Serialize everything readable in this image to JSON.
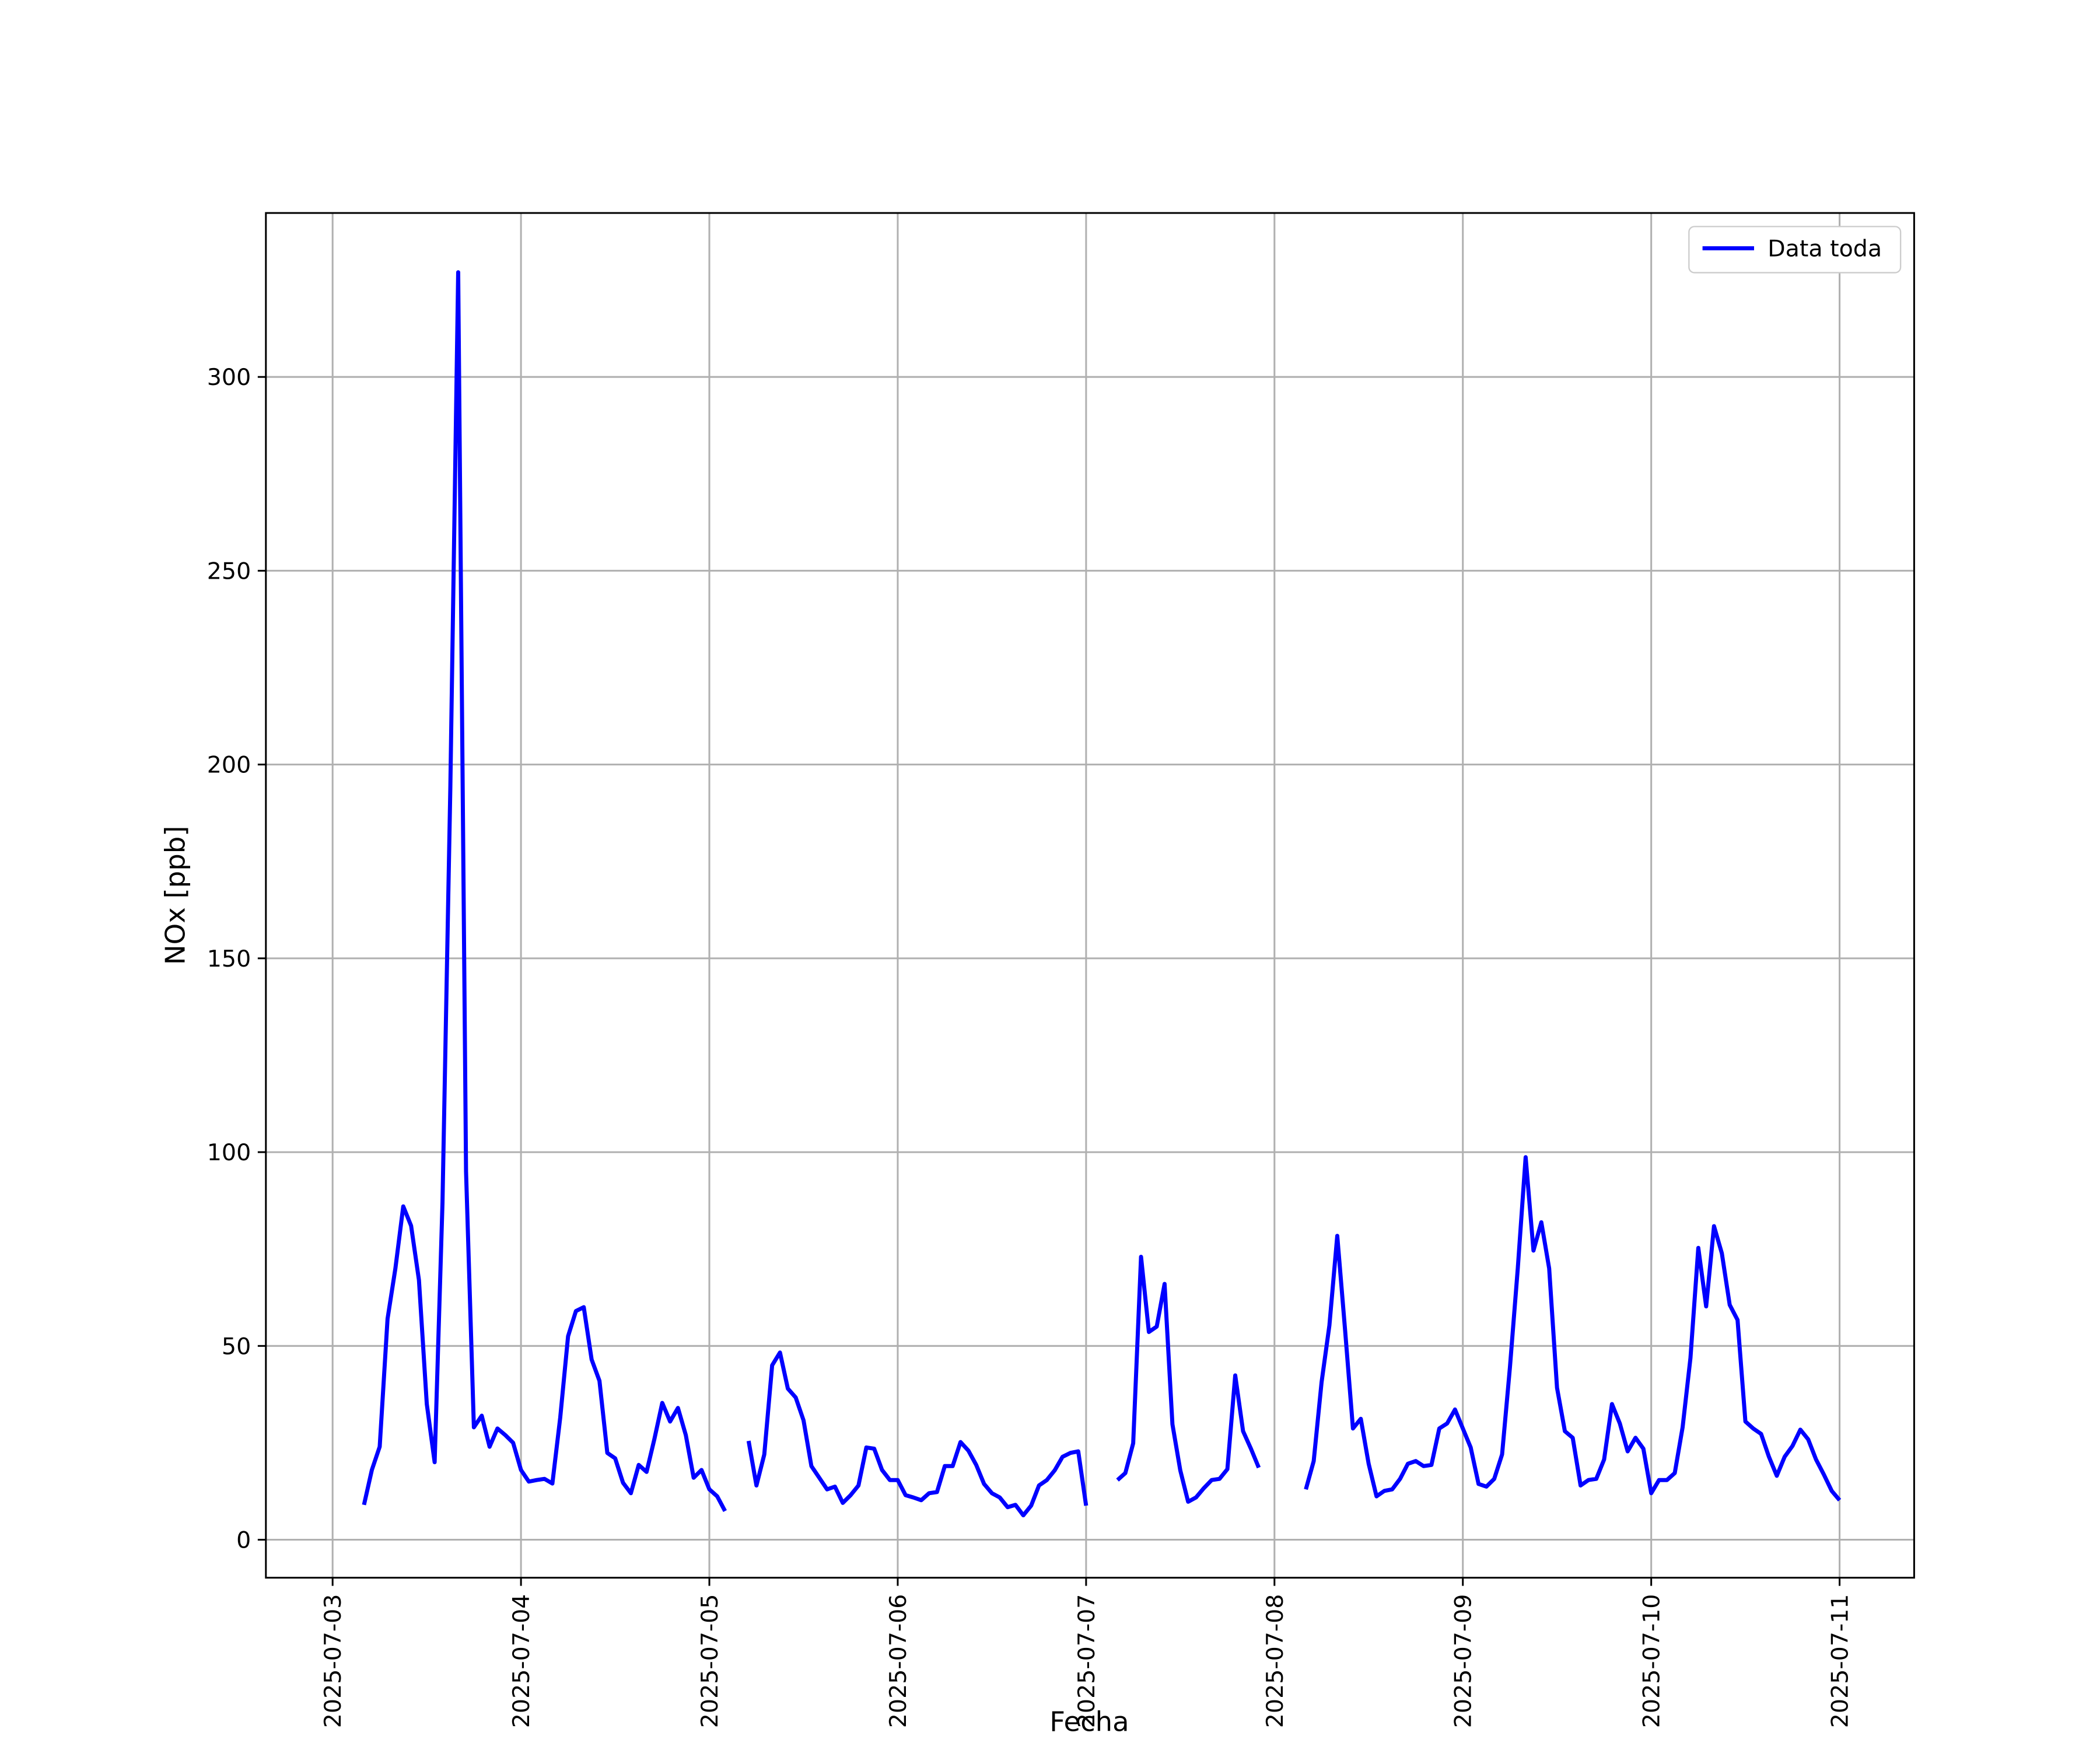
{
  "chart_data": {
    "type": "line",
    "xlabel": "Fecha",
    "ylabel": "NOx [ppb]",
    "xlim": [
      "2025-07-02 15:30",
      "2025-07-11 09:30"
    ],
    "xticks": [
      "2025-07-03",
      "2025-07-04",
      "2025-07-05",
      "2025-07-06",
      "2025-07-07",
      "2025-07-08",
      "2025-07-09",
      "2025-07-10",
      "2025-07-11"
    ],
    "ylim": [
      -9.8,
      342.3
    ],
    "yticks": [
      0,
      50,
      100,
      150,
      200,
      250,
      300
    ],
    "grid": true,
    "legend": "upper right",
    "x": [
      "2025-07-03 04:00",
      "2025-07-03 05:00",
      "2025-07-03 06:00",
      "2025-07-03 07:00",
      "2025-07-03 08:00",
      "2025-07-03 09:00",
      "2025-07-03 10:00",
      "2025-07-03 11:00",
      "2025-07-03 12:00",
      "2025-07-03 13:00",
      "2025-07-03 14:00",
      "2025-07-03 15:00",
      "2025-07-03 16:00",
      "2025-07-03 17:00",
      "2025-07-03 18:00",
      "2025-07-03 19:00",
      "2025-07-03 20:00",
      "2025-07-03 21:00",
      "2025-07-03 22:00",
      "2025-07-03 23:00",
      "2025-07-04 00:00",
      "2025-07-04 01:00",
      "2025-07-04 02:00",
      "2025-07-04 03:00",
      "2025-07-04 04:00",
      "2025-07-04 05:00",
      "2025-07-04 06:00",
      "2025-07-04 07:00",
      "2025-07-04 08:00",
      "2025-07-04 09:00",
      "2025-07-04 10:00",
      "2025-07-04 11:00",
      "2025-07-04 12:00",
      "2025-07-04 13:00",
      "2025-07-04 14:00",
      "2025-07-04 15:00",
      "2025-07-04 16:00",
      "2025-07-04 17:00",
      "2025-07-04 18:00",
      "2025-07-04 19:00",
      "2025-07-04 20:00",
      "2025-07-04 21:00",
      "2025-07-04 22:00",
      "2025-07-04 23:00",
      "2025-07-05 00:00",
      "2025-07-05 01:00",
      "2025-07-05 02:00",
      "2025-07-05 03:00",
      "2025-07-05 05:00",
      "2025-07-05 06:00",
      "2025-07-05 07:00",
      "2025-07-05 08:00",
      "2025-07-05 09:00",
      "2025-07-05 10:00",
      "2025-07-05 11:00",
      "2025-07-05 12:00",
      "2025-07-05 13:00",
      "2025-07-05 14:00",
      "2025-07-05 15:00",
      "2025-07-05 16:00",
      "2025-07-05 17:00",
      "2025-07-05 18:00",
      "2025-07-05 19:00",
      "2025-07-05 20:00",
      "2025-07-05 21:00",
      "2025-07-05 22:00",
      "2025-07-05 23:00",
      "2025-07-06 00:00",
      "2025-07-06 01:00",
      "2025-07-06 02:00",
      "2025-07-06 03:00",
      "2025-07-06 04:00",
      "2025-07-06 05:00",
      "2025-07-06 06:00",
      "2025-07-06 07:00",
      "2025-07-06 08:00",
      "2025-07-06 09:00",
      "2025-07-06 10:00",
      "2025-07-06 11:00",
      "2025-07-06 12:00",
      "2025-07-06 13:00",
      "2025-07-06 14:00",
      "2025-07-06 15:00",
      "2025-07-06 16:00",
      "2025-07-06 17:00",
      "2025-07-06 18:00",
      "2025-07-06 19:00",
      "2025-07-06 20:00",
      "2025-07-06 21:00",
      "2025-07-06 22:00",
      "2025-07-06 23:00",
      "2025-07-07 00:00",
      "2025-07-07 02:00",
      "2025-07-07 04:00",
      "2025-07-07 05:00",
      "2025-07-07 06:00",
      "2025-07-07 07:00",
      "2025-07-07 08:00",
      "2025-07-07 09:00",
      "2025-07-07 10:00",
      "2025-07-07 11:00",
      "2025-07-07 12:00",
      "2025-07-07 13:00",
      "2025-07-07 14:00",
      "2025-07-07 15:00",
      "2025-07-07 16:00",
      "2025-07-07 17:00",
      "2025-07-07 18:00",
      "2025-07-07 19:00",
      "2025-07-07 20:00",
      "2025-07-07 21:00",
      "2025-07-07 22:00",
      "2025-07-07 23:00",
      "2025-07-08 04:00",
      "2025-07-08 05:00",
      "2025-07-08 06:00",
      "2025-07-08 07:00",
      "2025-07-08 08:00",
      "2025-07-08 09:00",
      "2025-07-08 10:00",
      "2025-07-08 11:00",
      "2025-07-08 12:00",
      "2025-07-08 13:00",
      "2025-07-08 14:00",
      "2025-07-08 15:00",
      "2025-07-08 16:00",
      "2025-07-08 17:00",
      "2025-07-08 18:00",
      "2025-07-08 19:00",
      "2025-07-08 20:00",
      "2025-07-08 21:00",
      "2025-07-08 22:00",
      "2025-07-08 23:00",
      "2025-07-09 00:00",
      "2025-07-09 01:00",
      "2025-07-09 02:00",
      "2025-07-09 03:00",
      "2025-07-09 04:00",
      "2025-07-09 05:00",
      "2025-07-09 06:00",
      "2025-07-09 07:00",
      "2025-07-09 08:00",
      "2025-07-09 09:00",
      "2025-07-09 10:00",
      "2025-07-09 11:00",
      "2025-07-09 12:00",
      "2025-07-09 13:00",
      "2025-07-09 14:00",
      "2025-07-09 15:00",
      "2025-07-09 16:00",
      "2025-07-09 17:00",
      "2025-07-09 18:00",
      "2025-07-09 19:00",
      "2025-07-09 20:00",
      "2025-07-09 21:00",
      "2025-07-09 22:00",
      "2025-07-09 23:00",
      "2025-07-10 00:00",
      "2025-07-10 01:00",
      "2025-07-10 02:00",
      "2025-07-10 03:00",
      "2025-07-10 04:00",
      "2025-07-10 05:00",
      "2025-07-10 06:00",
      "2025-07-10 07:00",
      "2025-07-10 08:00",
      "2025-07-10 09:00",
      "2025-07-10 10:00",
      "2025-07-10 11:00",
      "2025-07-10 12:00",
      "2025-07-10 13:00",
      "2025-07-10 14:00",
      "2025-07-10 15:00",
      "2025-07-10 16:00",
      "2025-07-10 17:00",
      "2025-07-10 18:00",
      "2025-07-10 19:00",
      "2025-07-10 20:00",
      "2025-07-10 21:00",
      "2025-07-10 22:00",
      "2025-07-10 23:00",
      "2025-07-11 00:00"
    ],
    "series": [
      {
        "name": "Data toda",
        "color": "#0000ff",
        "values": [
          9,
          18,
          24,
          57,
          70,
          86,
          81,
          67,
          35,
          20,
          87,
          194,
          327,
          95,
          29,
          32,
          24,
          28.7,
          27,
          25,
          18,
          15,
          15.4,
          15.7,
          14.5,
          31.5,
          52.5,
          59,
          60,
          46.5,
          41,
          22.4,
          21,
          14.7,
          12,
          19.3,
          17.5,
          26,
          35.3,
          30.5,
          34,
          27,
          16,
          18,
          13,
          11.2,
          7.4,
          null,
          25.5,
          14,
          22,
          45,
          48.3,
          39,
          36.7,
          30.8,
          19,
          16,
          13,
          13.7,
          9.5,
          11.5,
          14,
          23.8,
          23.5,
          18,
          15.4,
          15.4,
          11.5,
          10.9,
          10.2,
          12,
          12.3,
          19,
          19,
          25.2,
          23,
          19.3,
          14.4,
          12,
          10.9,
          8.4,
          9,
          6.3,
          8.8,
          14,
          15.4,
          17.9,
          21.4,
          22.4,
          22.8,
          8.8,
          null,
          15.4,
          17.2,
          24.9,
          73,
          53.6,
          55,
          66,
          29.8,
          17.9,
          9.8,
          10.9,
          13.3,
          15.4,
          15.7,
          18.2,
          42.4,
          28,
          23.5,
          18.6,
          null,
          13,
          20.3,
          40.6,
          55.3,
          78.4,
          54,
          28.7,
          31.2,
          19.6,
          11.2,
          12.6,
          13,
          15.7,
          19.6,
          20.3,
          19,
          19.3,
          28.7,
          30,
          33.6,
          28.7,
          23.8,
          14.4,
          13.7,
          15.7,
          22,
          44.5,
          70,
          98.7,
          74.6,
          81.9,
          70,
          39.2,
          28,
          26.3,
          14,
          15.4,
          15.7,
          20.7,
          35,
          30,
          22.8,
          26.3,
          23.5,
          12,
          15.4,
          15.4,
          17.2,
          29,
          46.9,
          75.3,
          60.2,
          80.9,
          73.9,
          60.6,
          56.7,
          30.5,
          28.7,
          27.3,
          21.4,
          16.5,
          21.4,
          24.2,
          28.4,
          25.9,
          20.7,
          16.8,
          12.6,
          10.2
        ]
      }
    ]
  }
}
